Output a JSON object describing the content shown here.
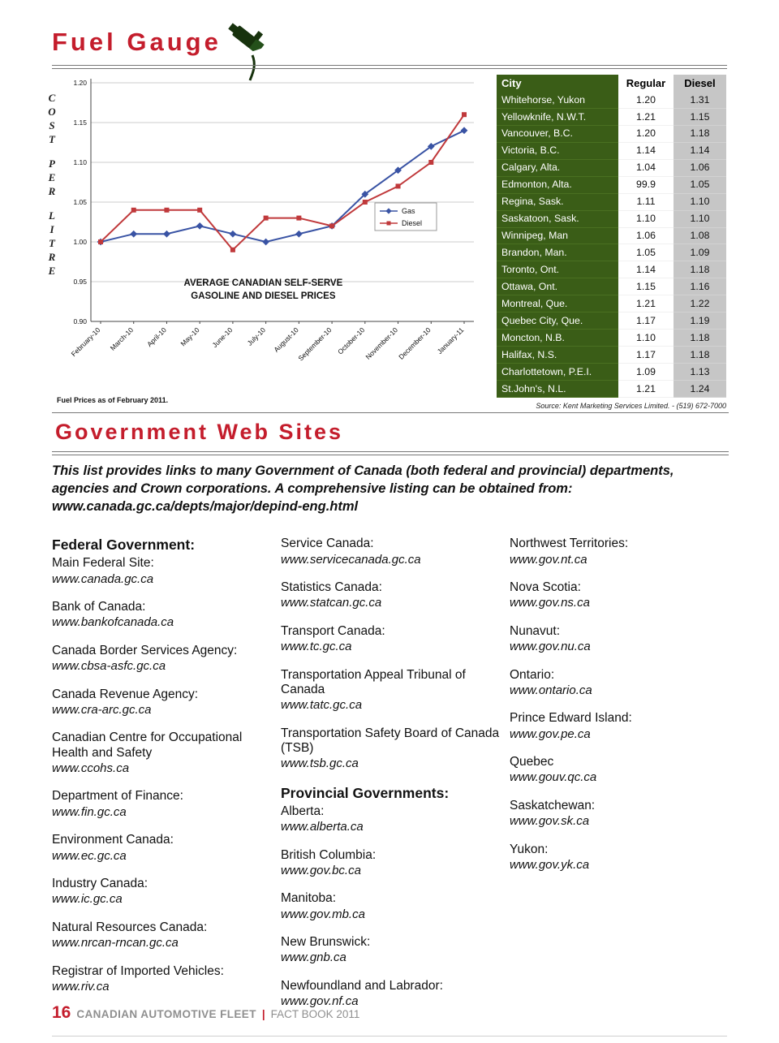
{
  "fuel_gauge": {
    "title": "Fuel Gauge"
  },
  "chart_data": {
    "type": "line",
    "title": "AVERAGE CANADIAN SELF-SERVE GASOLINE AND DIESEL PRICES",
    "title_lines": [
      "AVERAGE CANADIAN SELF-SERVE",
      "GASOLINE AND DIESEL PRICES"
    ],
    "ylabel": "COST PER LITRE",
    "xlabel": "",
    "x": [
      "February-10",
      "March-10",
      "April-10",
      "May-10",
      "June-10",
      "July-10",
      "August-10",
      "September-10",
      "October-10",
      "November-10",
      "December-10",
      "January-11"
    ],
    "series": [
      {
        "name": "Gas",
        "color": "#3953a4",
        "marker": "diamond",
        "values": [
          1.0,
          1.01,
          1.01,
          1.02,
          1.01,
          1.0,
          1.01,
          1.02,
          1.06,
          1.09,
          1.12,
          1.14
        ]
      },
      {
        "name": "Diesel",
        "color": "#c0393b",
        "marker": "square",
        "values": [
          1.0,
          1.04,
          1.04,
          1.04,
          0.99,
          1.03,
          1.03,
          1.02,
          1.05,
          1.07,
          1.1,
          1.16
        ]
      }
    ],
    "ylim": [
      0.9,
      1.2
    ],
    "yticks": [
      0.9,
      0.95,
      1.0,
      1.05,
      1.1,
      1.15,
      1.2
    ],
    "grid": true,
    "legend_position": "middle-right",
    "note": "Fuel Prices as of February 2011."
  },
  "price_table": {
    "headers": [
      "City",
      "Regular",
      "Diesel"
    ],
    "rows": [
      [
        "Whitehorse, Yukon",
        "1.20",
        "1.31"
      ],
      [
        "Yellowknife, N.W.T.",
        "1.21",
        "1.15"
      ],
      [
        "Vancouver, B.C.",
        "1.20",
        "1.18"
      ],
      [
        "Victoria, B.C.",
        "1.14",
        "1.14"
      ],
      [
        "Calgary, Alta.",
        "1.04",
        "1.06"
      ],
      [
        "Edmonton, Alta.",
        "99.9",
        "1.05"
      ],
      [
        "Regina, Sask.",
        "1.11",
        "1.10"
      ],
      [
        "Saskatoon, Sask.",
        "1.10",
        "1.10"
      ],
      [
        "Winnipeg, Man",
        "1.06",
        "1.08"
      ],
      [
        "Brandon, Man.",
        "1.05",
        "1.09"
      ],
      [
        "Toronto, Ont.",
        "1.14",
        "1.18"
      ],
      [
        "Ottawa, Ont.",
        "1.15",
        "1.16"
      ],
      [
        "Montreal, Que.",
        "1.21",
        "1.22"
      ],
      [
        "Quebec City, Que.",
        "1.17",
        "1.19"
      ],
      [
        "Moncton, N.B.",
        "1.10",
        "1.18"
      ],
      [
        "Halifax, N.S.",
        "1.17",
        "1.18"
      ],
      [
        "Charlottetown, P.E.I.",
        "1.09",
        "1.13"
      ],
      [
        "St.John's, N.L.",
        "1.21",
        "1.24"
      ]
    ],
    "source": "Source: Kent Marketing Services Limited. - (519) 672-7000"
  },
  "websites": {
    "title": "Government Web Sites",
    "intro": "This list provides links to many Government of Canada (both federal and provincial) departments, agencies and Crown corporations. A comprehensive listing can be obtained from: www.canada.gc.ca/depts/major/depind-eng.html",
    "columns": [
      {
        "items": [
          {
            "kind": "section",
            "text": "Federal Government:"
          },
          {
            "kind": "link",
            "label": "Main Federal Site:",
            "url": "www.canada.gc.ca"
          },
          {
            "kind": "link",
            "label": "Bank of Canada:",
            "url": "www.bankofcanada.ca"
          },
          {
            "kind": "link",
            "label": "Canada Border Services Agency:",
            "url": "www.cbsa-asfc.gc.ca"
          },
          {
            "kind": "link",
            "label": "Canada Revenue Agency:",
            "url": "www.cra-arc.gc.ca"
          },
          {
            "kind": "link",
            "label": "Canadian Centre for Occupational Health and Safety",
            "url": "www.ccohs.ca"
          },
          {
            "kind": "link",
            "label": "Department of Finance:",
            "url": "www.fin.gc.ca"
          },
          {
            "kind": "link",
            "label": "Environment Canada:",
            "url": "www.ec.gc.ca"
          },
          {
            "kind": "link",
            "label": "Industry Canada:",
            "url": "www.ic.gc.ca"
          },
          {
            "kind": "link",
            "label": "Natural Resources Canada:",
            "url": "www.nrcan-rncan.gc.ca"
          },
          {
            "kind": "link",
            "label": "Registrar of Imported Vehicles:",
            "url": "www.riv.ca"
          }
        ]
      },
      {
        "items": [
          {
            "kind": "link",
            "label": "Service Canada:",
            "url": "www.servicecanada.gc.ca"
          },
          {
            "kind": "link",
            "label": "Statistics Canada:",
            "url": "www.statcan.gc.ca"
          },
          {
            "kind": "link",
            "label": "Transport Canada:",
            "url": "www.tc.gc.ca"
          },
          {
            "kind": "link",
            "label": "Transportation Appeal Tribunal of Canada",
            "url": "www.tatc.gc.ca"
          },
          {
            "kind": "link",
            "label": "Transportation Safety Board of Canada (TSB)",
            "url": "www.tsb.gc.ca"
          },
          {
            "kind": "section",
            "text": "Provincial Governments:"
          },
          {
            "kind": "link",
            "label": "Alberta:",
            "url": "www.alberta.ca"
          },
          {
            "kind": "link",
            "label": "British Columbia:",
            "url": "www.gov.bc.ca"
          },
          {
            "kind": "link",
            "label": "Manitoba:",
            "url": "www.gov.mb.ca"
          },
          {
            "kind": "link",
            "label": "New Brunswick:",
            "url": "www.gnb.ca"
          },
          {
            "kind": "link",
            "label": "Newfoundland and Labrador:",
            "url": "www.gov.nf.ca"
          }
        ]
      },
      {
        "items": [
          {
            "kind": "link",
            "label": "Northwest Territories:",
            "url": "www.gov.nt.ca"
          },
          {
            "kind": "link",
            "label": "Nova Scotia:",
            "url": "www.gov.ns.ca"
          },
          {
            "kind": "link",
            "label": "Nunavut:",
            "url": "www.gov.nu.ca"
          },
          {
            "kind": "link",
            "label": "Ontario:",
            "url": "www.ontario.ca"
          },
          {
            "kind": "link",
            "label": "Prince Edward Island:",
            "url": "www.gov.pe.ca"
          },
          {
            "kind": "link",
            "label": "Quebec",
            "url": "www.gouv.qc.ca"
          },
          {
            "kind": "link",
            "label": "Saskatchewan:",
            "url": "www.gov.sk.ca"
          },
          {
            "kind": "link",
            "label": "Yukon:",
            "url": "www.gov.yk.ca"
          }
        ]
      }
    ]
  },
  "footer": {
    "page_number": "16",
    "publication": "CANADIAN AUTOMOTIVE FLEET",
    "separator": "|",
    "edition": "FACT BOOK 2011"
  }
}
